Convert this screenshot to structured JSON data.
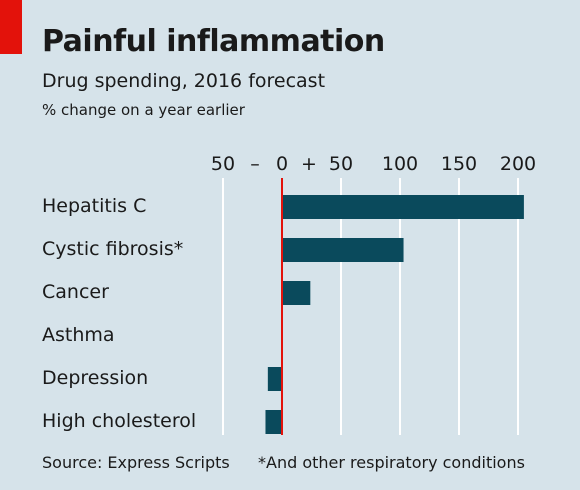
{
  "header": {
    "title": "Painful inflammation",
    "subtitle": "Drug spending, 2016 forecast",
    "unit_note": "% change on a year earlier"
  },
  "footer": {
    "source": "Source: Express Scripts",
    "note": "*And other respiratory conditions"
  },
  "colors": {
    "background": "#d6e3ea",
    "bar": "#0a4a5c",
    "zero_line": "#e3120b",
    "accent_tab": "#e3120b",
    "gridline": "#ffffff"
  },
  "chart_data": {
    "type": "bar",
    "orientation": "horizontal",
    "categories": [
      "Hepatitis C",
      "Cystic fibrosis*",
      "Cancer",
      "Asthma",
      "Depression",
      "High cholesterol"
    ],
    "values": [
      205,
      103,
      24,
      0,
      -12,
      -14
    ],
    "xlim": [
      -50,
      200
    ],
    "x_ticks": [
      -50,
      0,
      50,
      100,
      150,
      200
    ],
    "tick_labels": [
      "50",
      "0",
      "50",
      "100",
      "150",
      "200"
    ],
    "sign_labels": [
      "–",
      "+"
    ],
    "grid": true
  }
}
